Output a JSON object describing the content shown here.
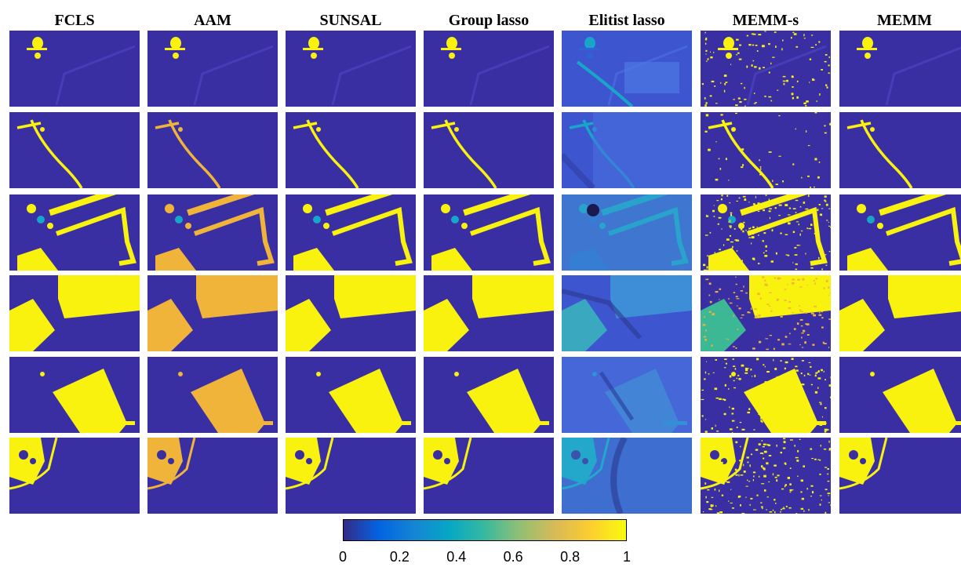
{
  "columns": [
    "FCLS",
    "AAM",
    "SUNSAL",
    "Group lasso",
    "Elitist lasso",
    "MEMM-s",
    "MEMM"
  ],
  "colorbar": {
    "colormap": "parula",
    "range": [
      0,
      1
    ],
    "ticks": [
      "0",
      "0.2",
      "0.4",
      "0.6",
      "0.8",
      "1"
    ],
    "colors": [
      "#352a87",
      "#0363e1",
      "#1485d4",
      "#06a7c6",
      "#38b99e",
      "#92bf73",
      "#d9ba56",
      "#fcce2e",
      "#f9fb0e"
    ]
  },
  "chart_data": {
    "type": "heatmap",
    "description_rows": 6,
    "description_cols": 7,
    "columns": [
      "FCLS",
      "AAM",
      "SUNSAL",
      "Group lasso",
      "Elitist lasso",
      "MEMM-s",
      "MEMM"
    ],
    "value_range": [
      0,
      1
    ]
  }
}
